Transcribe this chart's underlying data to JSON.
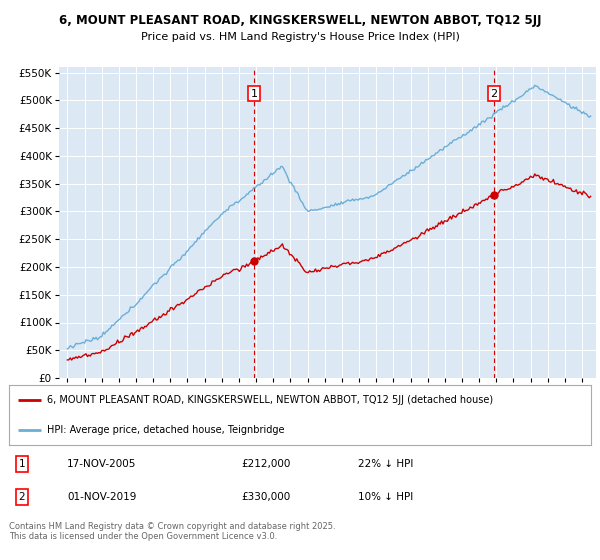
{
  "title1": "6, MOUNT PLEASANT ROAD, KINGSKERSWELL, NEWTON ABBOT, TQ12 5JJ",
  "title2": "Price paid vs. HM Land Registry's House Price Index (HPI)",
  "legend_line1": "6, MOUNT PLEASANT ROAD, KINGSKERSWELL, NEWTON ABBOT, TQ12 5JJ (detached house)",
  "legend_line2": "HPI: Average price, detached house, Teignbridge",
  "transaction1_date": "17-NOV-2005",
  "transaction1_price": "£212,000",
  "transaction1_hpi": "22% ↓ HPI",
  "transaction2_date": "01-NOV-2019",
  "transaction2_price": "£330,000",
  "transaction2_hpi": "10% ↓ HPI",
  "footnote": "Contains HM Land Registry data © Crown copyright and database right 2025.\nThis data is licensed under the Open Government Licence v3.0.",
  "hpi_color": "#6baed6",
  "price_color": "#cc0000",
  "plot_bg_color": "#dce9f5",
  "vline_color": "#cc0000",
  "marker1_x_year": 2005.88,
  "marker2_x_year": 2019.84,
  "ylim_min": 0,
  "ylim_max": 560000,
  "xlim_min": 1994.5,
  "xlim_max": 2025.8
}
